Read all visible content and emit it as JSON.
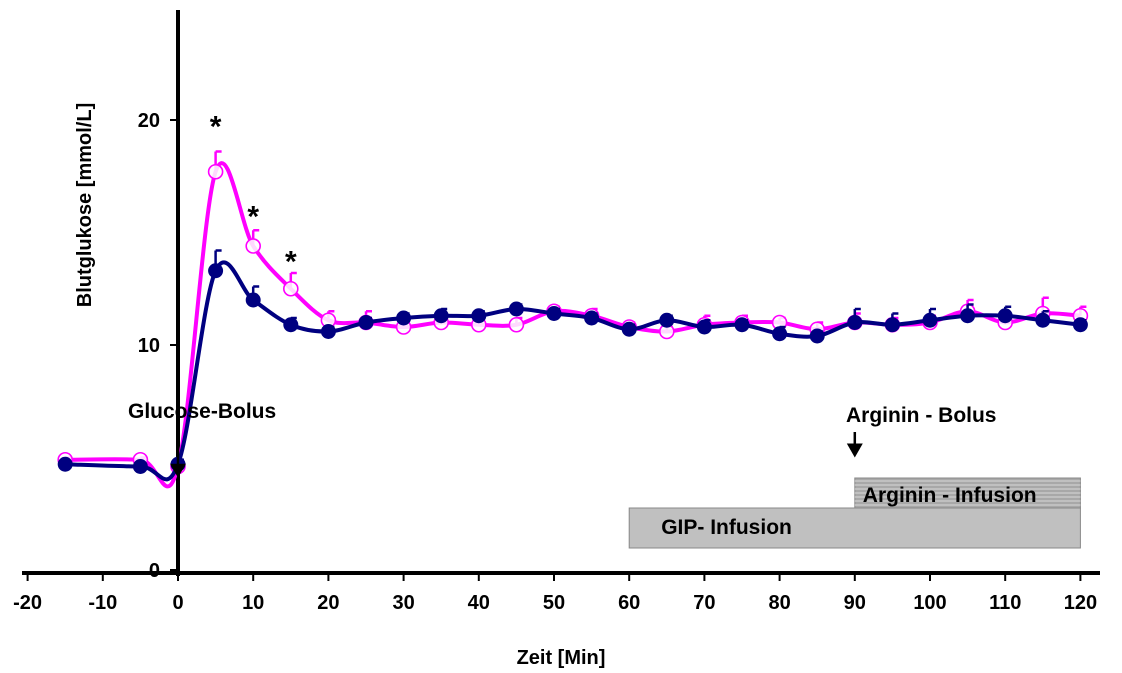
{
  "chart_data": {
    "type": "line",
    "xlabel": "Zeit [Min]",
    "ylabel": "Blutglukose [mmol/L]",
    "xlim": [
      -20,
      120
    ],
    "ylim": [
      0,
      25
    ],
    "x_ticks": [
      "-20",
      "-10",
      "0",
      "10",
      "20",
      "30",
      "40",
      "50",
      "60",
      "70",
      "80",
      "90",
      "100",
      "110",
      "120"
    ],
    "y_ticks": [
      "0",
      "10",
      "20"
    ],
    "series": [
      {
        "color": "#ff00ff",
        "marker": "open-circle",
        "x": [
          -15,
          -5,
          0,
          5,
          10,
          15,
          20,
          25,
          30,
          35,
          40,
          45,
          50,
          55,
          60,
          65,
          70,
          75,
          80,
          85,
          90,
          95,
          100,
          105,
          110,
          115,
          120
        ],
        "y": [
          4.9,
          4.9,
          4.6,
          17.7,
          14.4,
          12.5,
          11.1,
          11.0,
          10.8,
          11.0,
          10.9,
          10.9,
          11.5,
          11.3,
          10.8,
          10.6,
          10.9,
          11.0,
          11.0,
          10.7,
          11.0,
          10.9,
          11.0,
          11.5,
          11.0,
          11.4,
          11.3
        ],
        "error": [
          0.1,
          0.1,
          0.2,
          0.9,
          0.7,
          0.7,
          0.4,
          0.5,
          0.3,
          0.3,
          0.2,
          0.3,
          0.2,
          0.3,
          0.2,
          0.2,
          0.4,
          0.3,
          0.2,
          0.3,
          0.4,
          0.3,
          0.3,
          0.5,
          0.4,
          0.7,
          0.4
        ]
      },
      {
        "color": "#000080",
        "marker": "filled-circle",
        "x": [
          -15,
          -5,
          0,
          5,
          10,
          15,
          20,
          25,
          30,
          35,
          40,
          45,
          50,
          55,
          60,
          65,
          70,
          75,
          80,
          85,
          90,
          95,
          100,
          105,
          110,
          115,
          120
        ],
        "y": [
          4.7,
          4.6,
          4.7,
          13.3,
          12.0,
          10.9,
          10.6,
          11.0,
          11.2,
          11.3,
          11.3,
          11.6,
          11.4,
          11.2,
          10.7,
          11.1,
          10.8,
          10.9,
          10.5,
          10.4,
          11.0,
          10.9,
          11.1,
          11.3,
          11.3,
          11.1,
          10.9
        ],
        "error": [
          0.1,
          0.1,
          0.2,
          0.9,
          0.6,
          0.3,
          0.2,
          0.2,
          0.2,
          0.3,
          0.2,
          0.2,
          0.2,
          0.2,
          0.2,
          0.2,
          0.3,
          0.2,
          0.3,
          0.2,
          0.6,
          0.5,
          0.5,
          0.5,
          0.4,
          0.4,
          0.2
        ]
      }
    ],
    "significance_marks": [
      {
        "x": 5,
        "y": 19.8,
        "label": "*"
      },
      {
        "x": 10,
        "y": 15.8,
        "label": "*"
      },
      {
        "x": 15,
        "y": 13.8,
        "label": "*"
      }
    ],
    "annotations": [
      {
        "text": "Glucose-Bolus",
        "arrow_x": 0
      },
      {
        "text": "Arginin - Bolus",
        "arrow_x": 90
      }
    ],
    "bars": [
      {
        "label": "GIP- Infusion",
        "x_start": 60,
        "x_end": 120,
        "color": "#c0c0c0"
      },
      {
        "label": "Arginin - Infusion",
        "x_start": 90,
        "x_end": 120,
        "color": "#a8a8a8"
      }
    ],
    "grid": false
  }
}
